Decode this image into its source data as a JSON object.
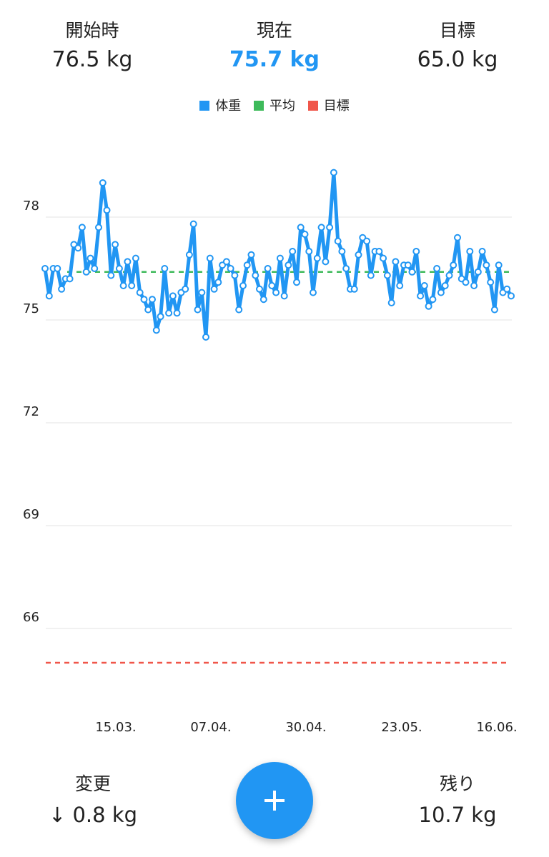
{
  "summary": {
    "start": {
      "label": "開始時",
      "value": "76.5 kg"
    },
    "current": {
      "label": "現在",
      "value": "75.7 kg"
    },
    "goal": {
      "label": "目標",
      "value": "65.0 kg"
    }
  },
  "legend": [
    {
      "label": "体重",
      "color": "#2196f3"
    },
    {
      "label": "平均",
      "color": "#3dba5a"
    },
    {
      "label": "目標",
      "color": "#f0564a"
    }
  ],
  "footer": {
    "change": {
      "label": "変更",
      "value": "↓ 0.8 kg"
    },
    "remaining": {
      "label": "残り",
      "value": "10.7 kg"
    }
  },
  "fab": {
    "icon": "plus-icon"
  },
  "colors": {
    "weight": "#2196f3",
    "average": "#3dba5a",
    "goal": "#f0564a",
    "grid": "#e3e3e3"
  },
  "chart_data": {
    "type": "line",
    "x_tick_labels": [
      "15.03.",
      "07.04.",
      "30.04.",
      "23.05.",
      "16.06."
    ],
    "y_ticks": [
      66,
      69,
      72,
      75,
      78
    ],
    "ylim": [
      64.5,
      80.5
    ],
    "grid": true,
    "legend_position": "top-center",
    "average_value": 76.4,
    "goal_value": 65.0,
    "series": [
      {
        "name": "体重",
        "values": [
          76.5,
          75.7,
          76.5,
          76.5,
          75.9,
          76.2,
          76.2,
          77.2,
          77.1,
          77.7,
          76.4,
          76.8,
          76.5,
          77.7,
          79.0,
          78.2,
          76.3,
          77.2,
          76.5,
          76.0,
          76.7,
          76.0,
          76.8,
          75.8,
          75.6,
          75.3,
          75.6,
          74.7,
          75.1,
          76.5,
          75.2,
          75.7,
          75.2,
          75.8,
          75.9,
          76.9,
          77.8,
          75.3,
          75.8,
          74.5,
          76.8,
          75.9,
          76.1,
          76.6,
          76.7,
          76.5,
          76.3,
          75.3,
          76.0,
          76.6,
          76.9,
          76.3,
          75.9,
          75.6,
          76.5,
          76.0,
          75.8,
          76.8,
          75.7,
          76.6,
          77.0,
          76.1,
          77.7,
          77.5,
          77.0,
          75.8,
          76.8,
          77.7,
          76.7,
          77.7,
          79.3,
          77.3,
          77.0,
          76.5,
          75.9,
          75.9,
          76.9,
          77.4,
          77.3,
          76.3,
          77.0,
          77.0,
          76.8,
          76.3,
          75.5,
          76.7,
          76.0,
          76.6,
          76.6,
          76.4,
          77.0,
          75.7,
          76.0,
          75.4,
          75.6,
          76.5,
          75.8,
          76.0,
          76.3,
          76.6,
          77.4,
          76.2,
          76.1,
          77.0,
          76.0,
          76.4,
          77.0,
          76.6,
          76.1,
          75.3,
          76.6,
          75.8,
          75.9,
          75.7
        ]
      }
    ]
  }
}
